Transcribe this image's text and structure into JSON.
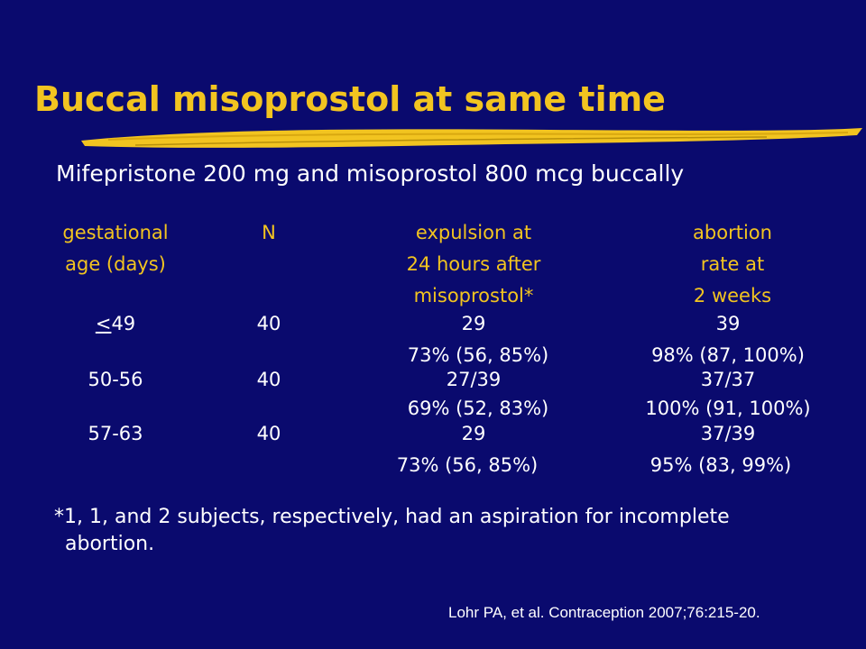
{
  "slide": {
    "title": "Buccal misoprostol at same time",
    "subtitle": "Mifepristone 200 mg and misoprostol 800 mcg buccally",
    "headers": {
      "gestational": [
        "gestational",
        "age (days)"
      ],
      "n": "N",
      "expulsion": [
        "expulsion at",
        "24 hours after",
        "misoprostol*"
      ],
      "abortion": [
        "abortion",
        "rate at",
        "2 weeks"
      ]
    },
    "rows": [
      {
        "age_symbol": "<",
        "age_rest": "49",
        "n": "40",
        "expulsion": [
          "29",
          "73% (56, 85%)"
        ],
        "abortion": [
          "39",
          "98% (87, 100%)"
        ]
      },
      {
        "age": "50-56",
        "n": "40",
        "expulsion": [
          "27/39",
          "69% (52, 83%)"
        ],
        "abortion": [
          "37/37",
          "100% (91, 100%)"
        ]
      },
      {
        "age": "57-63",
        "n": "40",
        "expulsion": [
          "29",
          "73% (56, 85%)"
        ],
        "abortion": [
          "37/39",
          "95% (83, 99%)"
        ]
      }
    ],
    "footnote": [
      "*1, 1, and 2 subjects, respectively, had an aspiration for incomplete",
      "abortion."
    ],
    "citation": "Lohr PA, et al. Contraception 2007;76:215-20."
  },
  "colors": {
    "background": "#0a0a6e",
    "title": "#f2c420",
    "text": "#ffffff"
  }
}
